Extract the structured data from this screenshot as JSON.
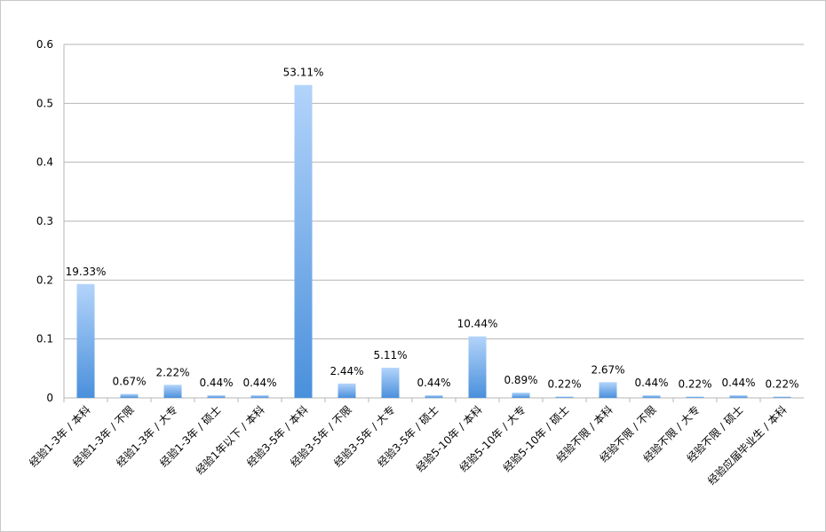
{
  "chart_data": {
    "type": "bar",
    "categories": [
      "经验1-3年 / 本科",
      "经验1-3年 / 不限",
      "经验1-3年 / 大专",
      "经验1-3年 / 硕士",
      "经验1年以下 / 本科",
      "经验3-5年 / 本科",
      "经验3-5年 / 不限",
      "经验3-5年 / 大专",
      "经验3-5年 / 硕士",
      "经验5-10年 / 本科",
      "经验5-10年 / 大专",
      "经验5-10年 / 硕士",
      "经验不限 / 本科",
      "经验不限 / 不限",
      "经验不限 / 大专",
      "经验不限 / 硕士",
      "经验应届毕业生 / 本科"
    ],
    "values": [
      0.1933,
      0.0067,
      0.0222,
      0.0044,
      0.0044,
      0.5311,
      0.0244,
      0.0511,
      0.0044,
      0.1044,
      0.0089,
      0.0022,
      0.0267,
      0.0044,
      0.0022,
      0.0044,
      0.0022
    ],
    "value_labels": [
      "19.33%",
      "0.67%",
      "2.22%",
      "0.44%",
      "0.44%",
      "53.11%",
      "2.44%",
      "5.11%",
      "0.44%",
      "10.44%",
      "0.89%",
      "0.22%",
      "2.67%",
      "0.44%",
      "0.22%",
      "0.44%",
      "0.22%"
    ],
    "color": "#4a90dc",
    "ylim": [
      0,
      0.6
    ],
    "yticks": [
      0,
      0.1,
      0.2,
      0.3,
      0.4,
      0.5,
      0.6
    ],
    "grid": true
  }
}
